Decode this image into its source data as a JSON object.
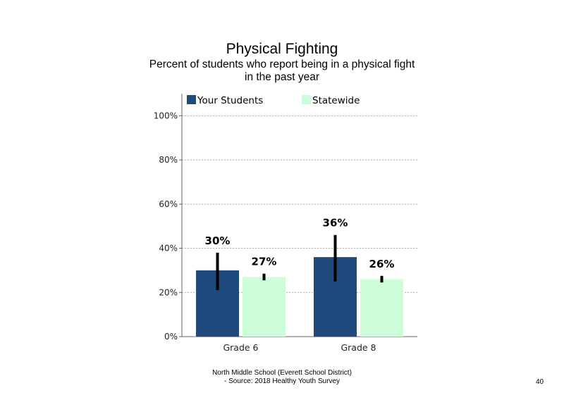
{
  "chart_data": {
    "type": "bar",
    "title": "Physical Fighting",
    "subtitle_lines": [
      "Percent of students who report being in a physical fight",
      "in the past year"
    ],
    "categories": [
      "Grade 6",
      "Grade 8"
    ],
    "series": [
      {
        "name": "Your Students",
        "color": "#1f497d",
        "values": [
          30,
          36
        ],
        "error_low": [
          21,
          25
        ],
        "error_high": [
          38,
          46
        ],
        "labels": [
          "30%",
          "36%"
        ]
      },
      {
        "name": "Statewide",
        "color": "#ccffd9",
        "values": [
          27,
          26
        ],
        "error_low": [
          25.5,
          24.5
        ],
        "error_high": [
          28.5,
          27.5
        ],
        "labels": [
          "27%",
          "26%"
        ]
      }
    ],
    "ylim": [
      0,
      110
    ],
    "yticks": [
      0,
      20,
      40,
      60,
      80,
      100
    ],
    "ytick_labels": [
      "0%",
      "20%",
      "40%",
      "60%",
      "80%",
      "100%"
    ],
    "grid": true,
    "legend_position": "top"
  },
  "footer": {
    "line1": "North Middle School (Everett School District)",
    "line2": "- Source: 2018 Healthy Youth Survey"
  },
  "page_number": "40"
}
